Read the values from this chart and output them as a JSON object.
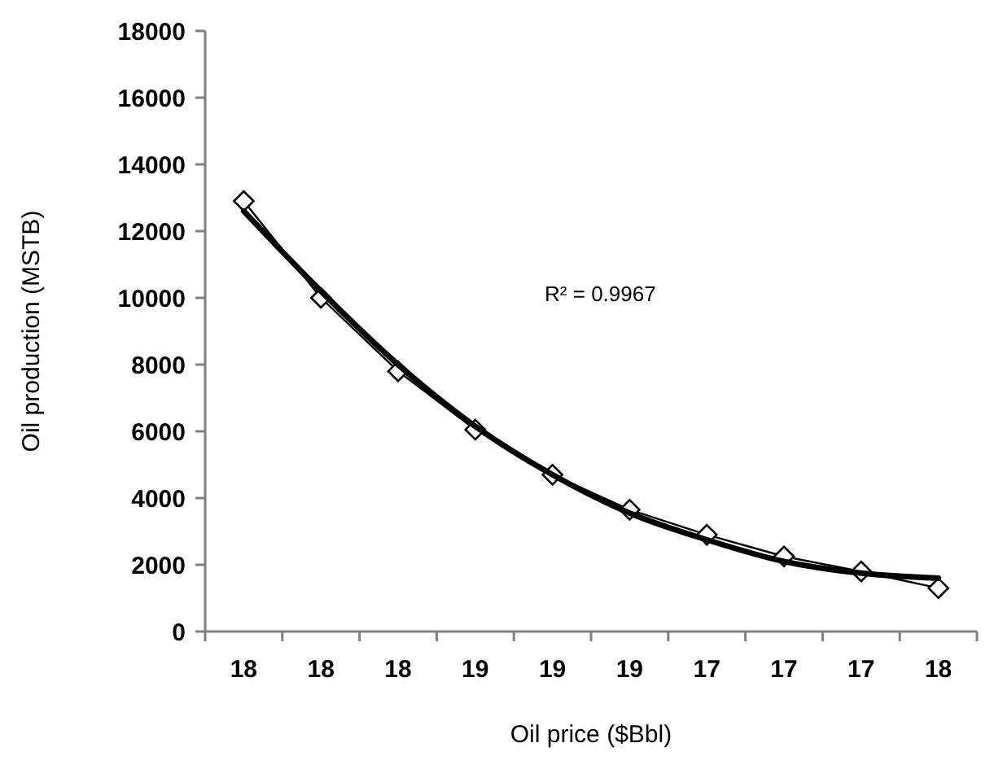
{
  "chart_data": {
    "type": "line",
    "xlabel": "Oil price ($Bbl)",
    "ylabel": "Oil production (MSTB)",
    "categories": [
      "18",
      "18",
      "18",
      "19",
      "19",
      "19",
      "17",
      "17",
      "17",
      "18"
    ],
    "ylim": [
      0,
      18000
    ],
    "yticks": [
      0,
      2000,
      4000,
      6000,
      8000,
      10000,
      12000,
      14000,
      16000,
      18000
    ],
    "grid": false,
    "series": [
      {
        "color": "#000000",
        "marker": "diamond",
        "values": [
          12900,
          10000,
          7800,
          6050,
          4700,
          3650,
          2900,
          2250,
          1800,
          1300
        ]
      },
      {
        "type": "line",
        "color": "#000000",
        "marker": "none",
        "values": [
          12600,
          10200,
          8000,
          6150,
          4700,
          3550,
          2750,
          2100,
          1750,
          1600
        ]
      }
    ],
    "annotations": [
      "R² = 0.9967"
    ]
  }
}
